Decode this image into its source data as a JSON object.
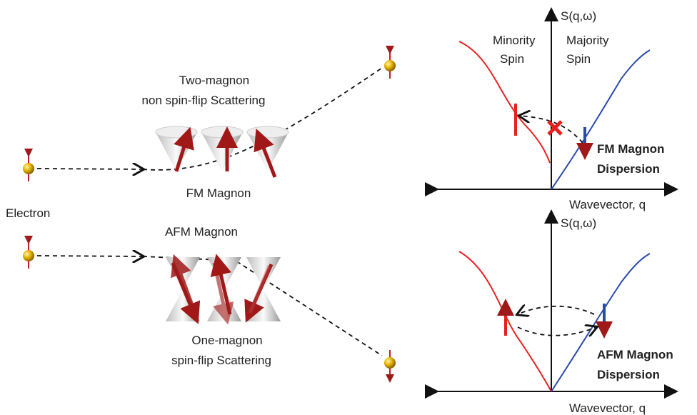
{
  "left": {
    "top_title": [
      "Two-magnon",
      "non spin-flip Scattering"
    ],
    "fm_label": "FM Magnon",
    "electron_label": "Electron",
    "afm_label": "AFM Magnon",
    "bottom_title": [
      "One-magnon",
      "spin-flip Scattering"
    ]
  },
  "right": {
    "top": {
      "y_label": "S(q,ω)",
      "minority": [
        "Minority",
        "Spin"
      ],
      "majority": [
        "Majority",
        "Spin"
      ],
      "caption": [
        "FM Magnon",
        "Dispersion"
      ],
      "x_label": "Wavevector, q"
    },
    "bottom": {
      "y_label": "S(q,ω)",
      "caption": [
        "AFM Magnon",
        "Dispersion"
      ],
      "x_label": "Wavevector, q"
    }
  }
}
